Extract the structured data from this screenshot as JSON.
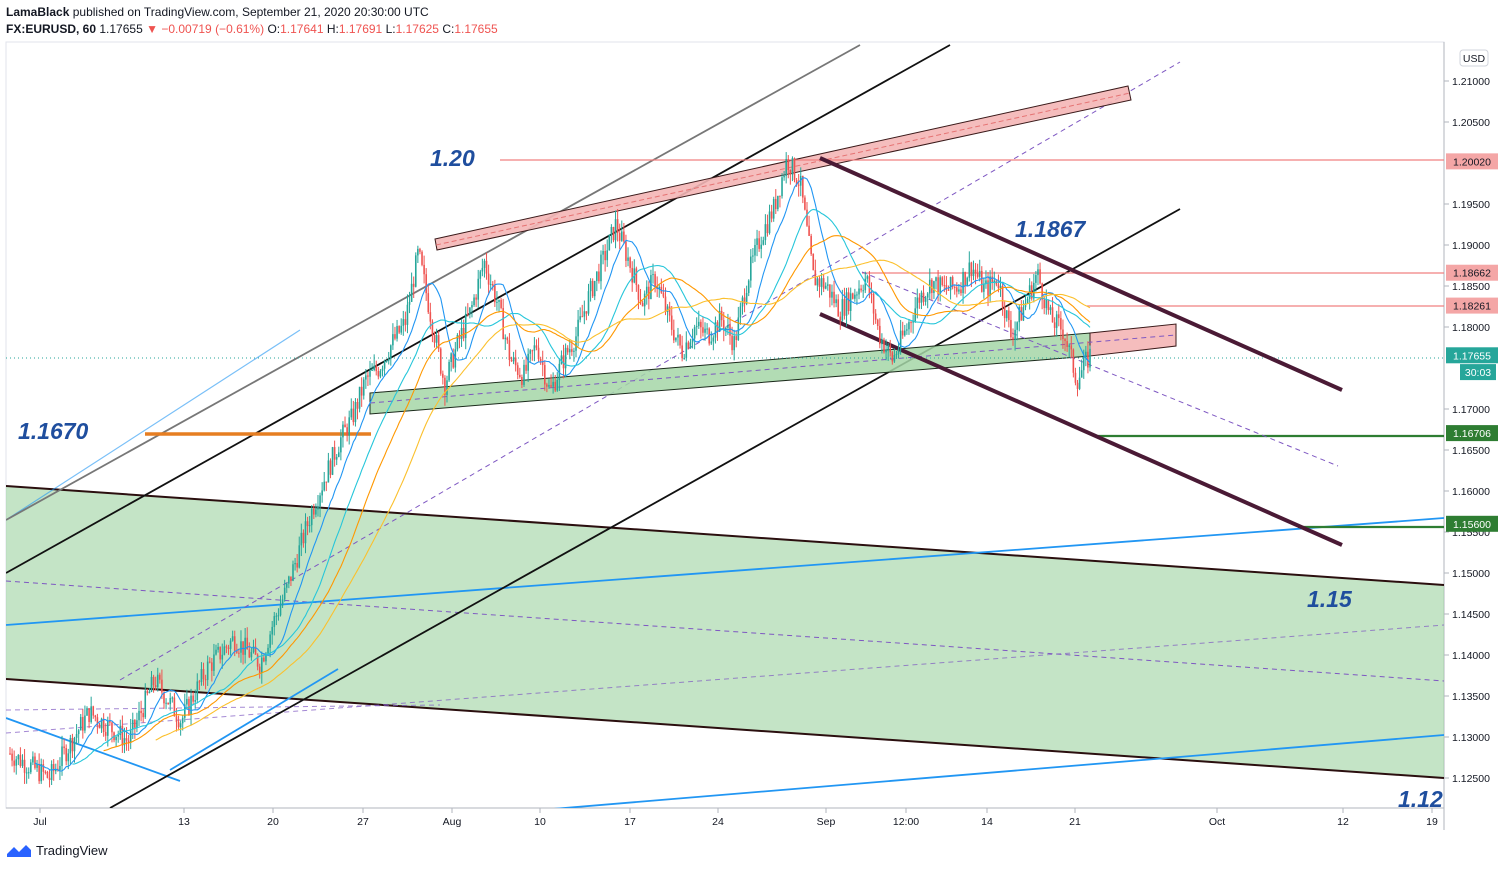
{
  "header": {
    "publisher": "LamaBlack",
    "published_text": "published on TradingView.com, September 21, 2020 20:30:00 UTC",
    "symbol": "FX:EURUSD, 60",
    "last": "1.17655",
    "change_arrow": "▼",
    "change": "−0.00719 (−0.61%)",
    "o_label": "O:",
    "o_val": "1.17641",
    "h_label": "H:",
    "h_val": "1.17691",
    "l_label": "L:",
    "l_val": "1.17625",
    "c_label": "C:",
    "c_val": "1.17655"
  },
  "footer": {
    "brand": "TradingView",
    "logo_icon": "tradingview-logo-icon"
  },
  "colors": {
    "up": "#26a69a",
    "down": "#ef5350",
    "zone_green": "#a5d6a7",
    "zone_red": "#f4b6b6",
    "annot_blue": "#1f4e9e",
    "channel_purple": "#4a1a35"
  },
  "chart_data": {
    "type": "candlestick",
    "currency": "USD",
    "ylim": [
      1.1228,
      1.2144
    ],
    "y_ticks": [
      "1.21000",
      "1.20500",
      "1.19500",
      "1.19000",
      "1.18500",
      "1.18000",
      "1.17000",
      "1.16500",
      "1.16000",
      "1.15500",
      "1.15000",
      "1.14500",
      "1.14000",
      "1.13500",
      "1.13000",
      "1.12500"
    ],
    "y_tick_values": [
      1.21,
      1.205,
      1.195,
      1.19,
      1.185,
      1.18,
      1.17,
      1.165,
      1.16,
      1.155,
      1.15,
      1.145,
      1.14,
      1.135,
      1.13,
      1.125
    ],
    "x_ticks": [
      "Jul",
      "13",
      "20",
      "27",
      "Aug",
      "10",
      "17",
      "24",
      "Sep",
      "12:00",
      "14",
      "21",
      "Oct",
      "12",
      "19"
    ],
    "price_labels": [
      {
        "text": "1.20020",
        "value": 1.2002,
        "kind": "red"
      },
      {
        "text": "1.18662",
        "value": 1.18662,
        "kind": "red"
      },
      {
        "text": "1.18261",
        "value": 1.18261,
        "kind": "red"
      },
      {
        "text": "1.17655",
        "value": 1.17655,
        "kind": "green"
      },
      {
        "text": "30:03",
        "value": 1.1745,
        "kind": "green"
      },
      {
        "text": "1.16706",
        "value": 1.16706,
        "kind": "darkgreen"
      },
      {
        "text": "1.15600",
        "value": 1.156,
        "kind": "darkgreen"
      }
    ],
    "annotations": [
      {
        "text": "1.20",
        "value": 1.2002
      },
      {
        "text": "1.1867",
        "value": 1.1867
      },
      {
        "text": "1.1670",
        "value": 1.167
      },
      {
        "text": "1.15",
        "value": 1.15
      },
      {
        "text": "1.12",
        "value": 1.125
      }
    ],
    "price_path": [
      [
        0,
        1.128
      ],
      [
        3,
        1.125
      ],
      [
        6,
        1.133
      ],
      [
        9,
        1.1295
      ],
      [
        11,
        1.137
      ],
      [
        13,
        1.132
      ],
      [
        15,
        1.1385
      ],
      [
        17,
        1.142
      ],
      [
        19,
        1.139
      ],
      [
        20,
        1.144
      ],
      [
        21,
        1.148
      ],
      [
        22,
        1.153
      ],
      [
        23,
        1.158
      ],
      [
        24,
        1.162
      ],
      [
        25,
        1.166
      ],
      [
        26,
        1.169
      ],
      [
        27,
        1.1735
      ],
      [
        28,
        1.175
      ],
      [
        29,
        1.178
      ],
      [
        30,
        1.1805
      ],
      [
        31,
        1.189
      ],
      [
        32,
        1.181
      ],
      [
        33,
        1.173
      ],
      [
        34,
        1.178
      ],
      [
        35,
        1.182
      ],
      [
        36,
        1.188
      ],
      [
        37,
        1.183
      ],
      [
        38,
        1.176
      ],
      [
        39,
        1.174
      ],
      [
        40,
        1.178
      ],
      [
        41,
        1.172
      ],
      [
        42,
        1.176
      ],
      [
        43,
        1.179
      ],
      [
        44,
        1.184
      ],
      [
        45,
        1.188
      ],
      [
        46,
        1.1925
      ],
      [
        47,
        1.188
      ],
      [
        48,
        1.183
      ],
      [
        49,
        1.186
      ],
      [
        50,
        1.181
      ],
      [
        51,
        1.177
      ],
      [
        52,
        1.18
      ],
      [
        53,
        1.179
      ],
      [
        54,
        1.181
      ],
      [
        55,
        1.178
      ],
      [
        56,
        1.186
      ],
      [
        57,
        1.191
      ],
      [
        58,
        1.1945
      ],
      [
        59,
        1.2005
      ],
      [
        60,
        1.1975
      ],
      [
        61,
        1.186
      ],
      [
        62,
        1.185
      ],
      [
        63,
        1.182
      ],
      [
        64,
        1.184
      ],
      [
        65,
        1.186
      ],
      [
        66,
        1.179
      ],
      [
        67,
        1.176
      ],
      [
        68,
        1.1795
      ],
      [
        69,
        1.1835
      ],
      [
        70,
        1.1855
      ],
      [
        71,
        1.1845
      ],
      [
        72,
        1.185
      ],
      [
        73,
        1.1875
      ],
      [
        74,
        1.1845
      ],
      [
        75,
        1.186
      ],
      [
        76,
        1.179
      ],
      [
        77,
        1.1825
      ],
      [
        78,
        1.1865
      ],
      [
        79,
        1.181
      ],
      [
        80,
        1.1795
      ],
      [
        81,
        1.1735
      ],
      [
        82,
        1.1766
      ]
    ]
  }
}
